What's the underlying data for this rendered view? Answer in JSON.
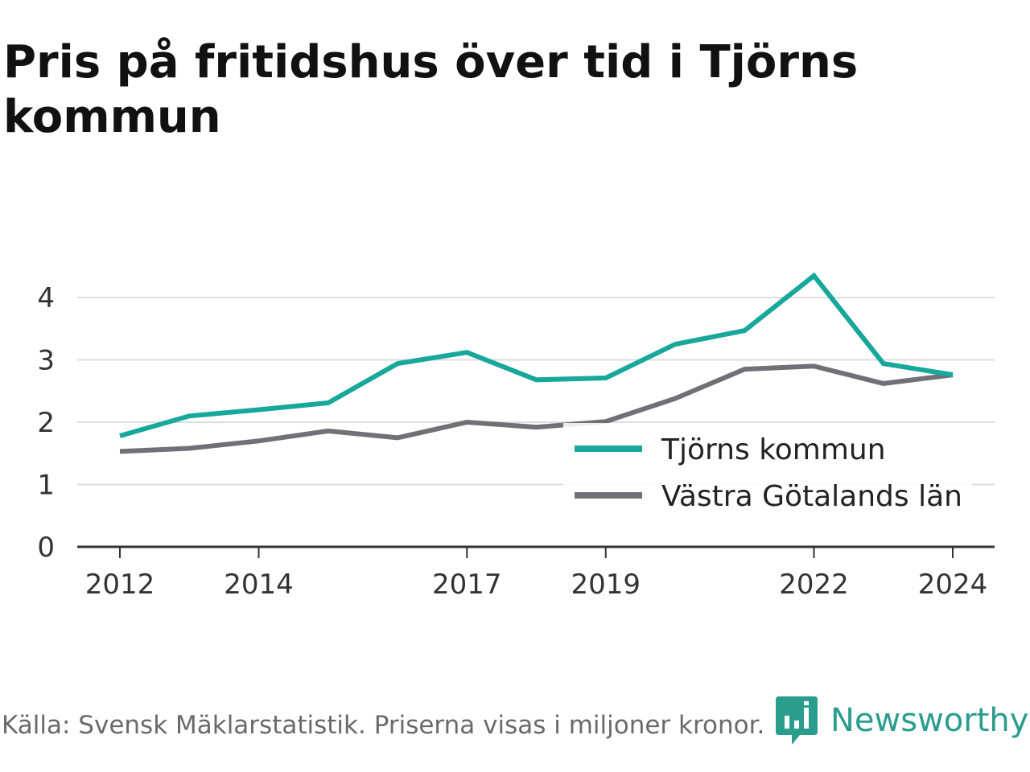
{
  "title": "Pris på fritidshus över tid i Tjörns kommun",
  "footer": {
    "source": "Källa: Svensk Mäklarstatistik. Priserna visas i miljoner kronor.",
    "brand": "Newsworthy"
  },
  "colors": {
    "tjorn": "#17a79b",
    "vg": "#707076",
    "grid": "#dddddd",
    "axis": "#333333",
    "brand": "#2a9d8f"
  },
  "chart_data": {
    "type": "line",
    "title": "Pris på fritidshus över tid i Tjörns kommun",
    "xlabel": "",
    "ylabel": "",
    "x": [
      2012,
      2013,
      2014,
      2015,
      2016,
      2017,
      2018,
      2019,
      2020,
      2021,
      2022,
      2023,
      2024
    ],
    "x_ticks": [
      "2012",
      "2014",
      "2017",
      "2019",
      "2022",
      "2024"
    ],
    "y_ticks": [
      "0",
      "1",
      "2",
      "3",
      "4"
    ],
    "ylim": [
      0,
      4.5
    ],
    "xlim": [
      2012,
      2024
    ],
    "grid": true,
    "legend_position": "bottom-right",
    "series": [
      {
        "name": "Tjörns kommun",
        "values": [
          1.78,
          2.1,
          2.2,
          2.31,
          2.94,
          3.12,
          2.68,
          2.71,
          3.25,
          3.47,
          4.35,
          2.94,
          2.76
        ]
      },
      {
        "name": "Västra Götalands län",
        "values": [
          1.53,
          1.58,
          1.7,
          1.86,
          1.75,
          2.0,
          1.92,
          2.01,
          2.38,
          2.85,
          2.9,
          2.62,
          2.76
        ]
      }
    ]
  }
}
